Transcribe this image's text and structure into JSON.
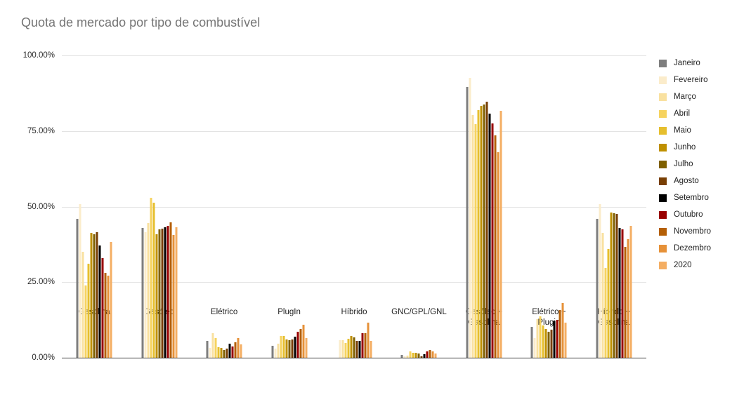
{
  "title": "Quota de mercado por tipo de combustível",
  "colors": {
    "title_text": "#757575",
    "axis_text": "#2b2b2b",
    "gridline": "#e3e3e3",
    "baseline": "#3c3c3c",
    "background": "#ffffff"
  },
  "chart_data": {
    "type": "bar",
    "title": "Quota de mercado por tipo de combustível",
    "xlabel": "",
    "ylabel": "",
    "ylim": [
      0,
      100
    ],
    "grid": true,
    "legend_position": "right",
    "y_ticks": [
      "100.00%",
      "75.00%",
      "50.00%",
      "25.00%",
      "0.00%"
    ],
    "categories": [
      "Gasolina",
      "Gasóleo",
      "Elétrico",
      "PlugIn",
      "Híbrido",
      "GNC/GPL/GNL",
      "Gasóleo +\nGasolina",
      "Elétrico +\nPlugin",
      "Híbrido +\nGasolina"
    ],
    "series": [
      {
        "name": "Janeiro",
        "color": "#7e7e7e",
        "values": [
          46.0,
          43.0,
          5.6,
          4.0,
          0.0,
          1.0,
          89.5,
          10.1,
          46.0
        ]
      },
      {
        "name": "Fevereiro",
        "color": "#fbeccb",
        "values": [
          50.8,
          41.5,
          3.3,
          3.0,
          5.8,
          0.5,
          92.5,
          6.4,
          50.9
        ]
      },
      {
        "name": "Março",
        "color": "#f9e1a0",
        "values": [
          35.0,
          44.6,
          8.2,
          4.7,
          5.8,
          0.8,
          80.2,
          12.8,
          41.3
        ]
      },
      {
        "name": "Abril",
        "color": "#f6d35f",
        "values": [
          24.0,
          53.0,
          6.6,
          7.1,
          4.9,
          2.2,
          77.2,
          13.8,
          29.7
        ]
      },
      {
        "name": "Maio",
        "color": "#e6bf2e",
        "values": [
          31.0,
          51.2,
          3.5,
          7.1,
          6.2,
          1.7,
          82.0,
          10.7,
          35.9
        ]
      },
      {
        "name": "Junho",
        "color": "#bf9000",
        "values": [
          41.3,
          40.9,
          3.3,
          6.1,
          7.1,
          1.6,
          83.3,
          9.5,
          48.1
        ]
      },
      {
        "name": "Julho",
        "color": "#7f6000",
        "values": [
          40.8,
          42.4,
          2.5,
          5.8,
          6.8,
          1.4,
          83.8,
          8.5,
          47.7
        ]
      },
      {
        "name": "Agosto",
        "color": "#783f04",
        "values": [
          41.5,
          42.6,
          3.0,
          6.1,
          5.6,
          0.5,
          84.6,
          9.2,
          47.5
        ]
      },
      {
        "name": "Setembro",
        "color": "#000000",
        "values": [
          37.1,
          43.2,
          4.7,
          7.0,
          5.6,
          1.1,
          80.7,
          12.0,
          42.9
        ]
      },
      {
        "name": "Outubro",
        "color": "#990000",
        "values": [
          33.0,
          43.6,
          3.7,
          8.5,
          8.2,
          2.2,
          77.6,
          12.6,
          42.5
        ]
      },
      {
        "name": "Novembro",
        "color": "#b45f06",
        "values": [
          28.1,
          44.7,
          5.0,
          9.5,
          8.2,
          2.5,
          73.5,
          15.7,
          36.6
        ]
      },
      {
        "name": "Dezembro",
        "color": "#e69138",
        "values": [
          27.2,
          40.7,
          6.6,
          10.9,
          11.5,
          2.0,
          68.1,
          18.0,
          39.2
        ]
      },
      {
        "name": "2020",
        "color": "#f4ae63",
        "values": [
          38.2,
          43.2,
          4.5,
          6.6,
          5.6,
          1.4,
          81.7,
          11.5,
          43.6
        ]
      }
    ]
  }
}
